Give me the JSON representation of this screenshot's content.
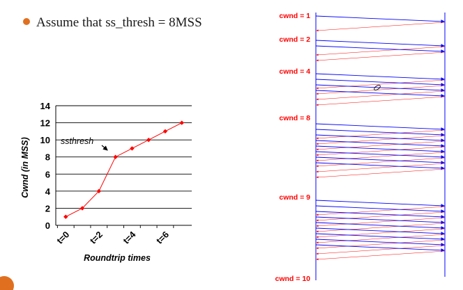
{
  "bullet": {
    "text": "Assume that ss_thresh = 8MSS",
    "color": "#e07020"
  },
  "page_badge": {
    "color": "#e07020"
  },
  "colors": {
    "series": "#ff0000",
    "forward_arrow": "#0000ff",
    "ack_arrow": "#ff0000",
    "grid": "#000000"
  },
  "timeline": {
    "labels": [
      "cwnd = 1",
      "cwnd = 2",
      "cwnd = 4",
      "cwnd = 8",
      "cwnd = 9",
      "cwnd = 10"
    ],
    "packets_per_round": [
      1,
      2,
      4,
      8,
      9
    ]
  },
  "chart_data": {
    "type": "line",
    "title": "",
    "xlabel": "Roundtrip times",
    "ylabel": "Cwnd (in MSS)",
    "ylim": [
      0,
      14
    ],
    "yticks": [
      0,
      2,
      4,
      6,
      8,
      10,
      12,
      14
    ],
    "xticks": [
      {
        "label": "t=0",
        "x": 0
      },
      {
        "label": "t=2",
        "x": 2
      },
      {
        "label": "t=4",
        "x": 4
      },
      {
        "label": "t=6",
        "x": 6
      }
    ],
    "xlim": [
      0,
      7
    ],
    "grid": true,
    "series": [
      {
        "x": [
          0,
          1,
          2,
          3,
          4,
          5,
          6,
          7
        ],
        "values": [
          1,
          2,
          4,
          8,
          9,
          10,
          11,
          12
        ]
      }
    ],
    "annotations": [
      {
        "text": "ssthresh",
        "points_to": {
          "x": 3,
          "y": 8
        }
      }
    ]
  }
}
